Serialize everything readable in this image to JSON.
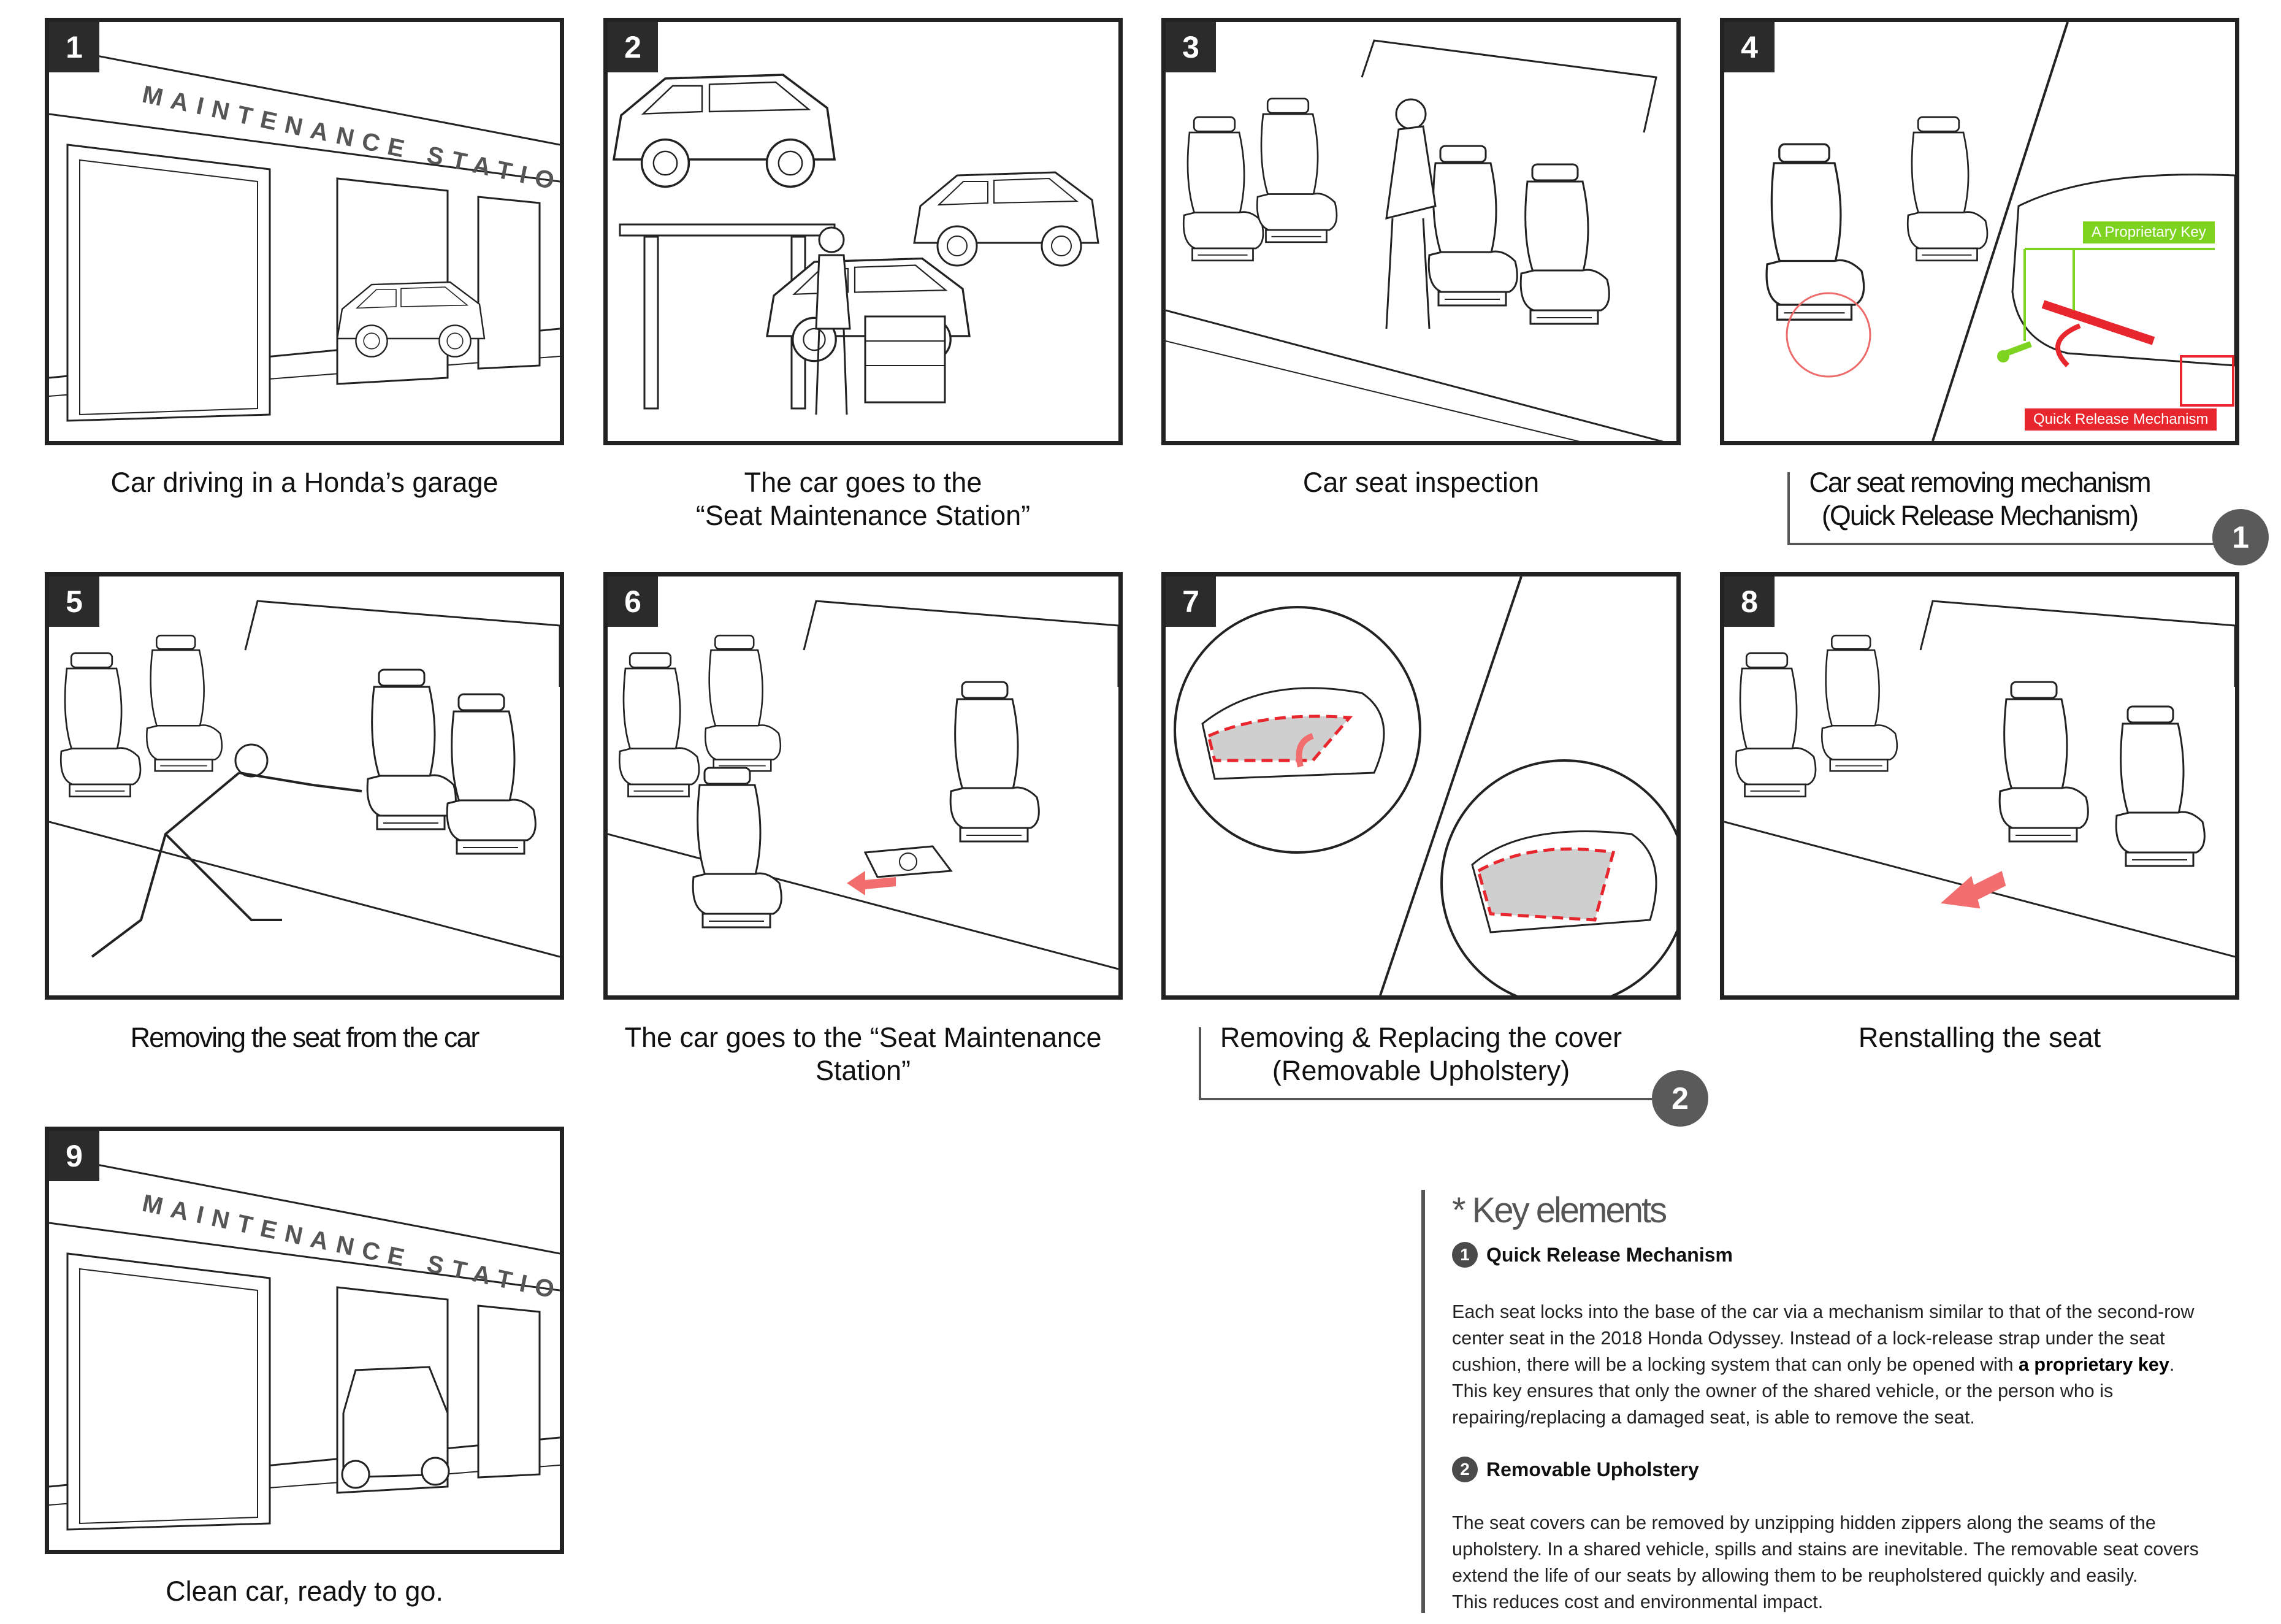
{
  "panels": [
    {
      "number": "1",
      "caption": "Car driving in a Honda’s garage",
      "sign": "MAINTENANCE STATION"
    },
    {
      "number": "2",
      "caption_line1": "The car goes to the",
      "caption_line2": "“Seat Maintenance Station”"
    },
    {
      "number": "3",
      "caption": "Car seat inspection"
    },
    {
      "number": "4",
      "caption_line1": "Car seat removing mechanism",
      "caption_line2": "(Quick Release Mechanism)",
      "badge": "1",
      "tag_key": "A Proprietary Key",
      "tag_mechanism": "Quick Release Mechanism"
    },
    {
      "number": "5",
      "caption": "Removing the seat from the car"
    },
    {
      "number": "6",
      "caption_line1": "The car goes to the “Seat Maintenance",
      "caption_line2": "Station”"
    },
    {
      "number": "7",
      "caption_line1": "Removing & Replacing the cover",
      "caption_line2": "(Removable Upholstery)",
      "badge": "2"
    },
    {
      "number": "8",
      "caption": "Renstalling the seat"
    },
    {
      "number": "9",
      "caption": "Clean car, ready to go.",
      "sign": "MAINTENANCE STATION"
    }
  ],
  "key_elements": {
    "title": "* Key elements",
    "items": [
      {
        "badge": "1",
        "heading": "Quick Release Mechanism",
        "lines": [
          "Each seat locks into the base of the car via a mechanism similar to that of the second-row",
          "center seat in the 2018 Honda Odyssey. Instead of a lock-release strap under the seat",
          "cushion, there will be a locking system that can only be opened with ",
          "This key ensures that only the owner of the shared vehicle, or the person who is",
          "repairing/replacing a damaged seat, is able to remove the seat."
        ],
        "bold_phrase": "a proprietary key",
        "bold_after": "."
      },
      {
        "badge": "2",
        "heading": "Removable Upholstery",
        "lines": [
          "The seat covers can be removed by unzipping hidden zippers along the seams of the",
          "upholstery. In a shared vehicle, spills and stains are inevitable. The removable seat covers",
          "extend the life of our seats by allowing them to be reupholstered quickly and easily.",
          "This reduces cost and environmental impact."
        ]
      }
    ]
  },
  "colors": {
    "frame": "#222222",
    "badge": "#5a5a5a",
    "key_tag": "#7ed321",
    "mechanism_tag": "#e8262d",
    "arrow": "#f26d6d"
  }
}
